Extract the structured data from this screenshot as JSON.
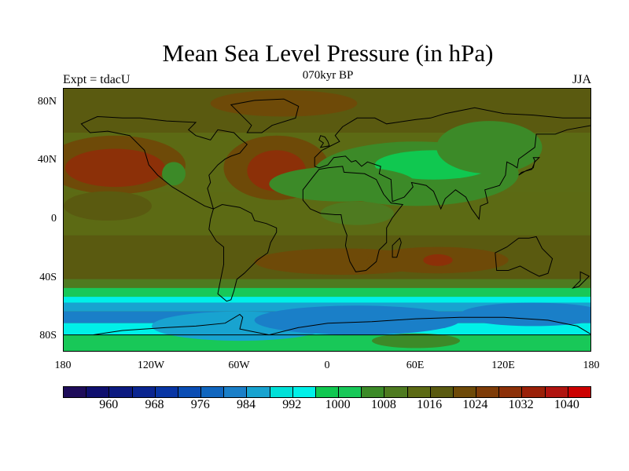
{
  "title": "Mean Sea Level Pressure (in hPa)",
  "subtitle": "070kyr BP",
  "left_label": "Expt = tdacU",
  "right_label": "JJA",
  "chart_data": {
    "type": "heatmap",
    "projection": "cylindrical-equidistant",
    "variable": "Mean Sea Level Pressure",
    "units": "hPa",
    "season": "JJA",
    "experiment": "tdacU",
    "period": "070kyr BP",
    "lon_range": [
      -180,
      180
    ],
    "lat_range": [
      -90,
      90
    ],
    "y_ticks": [
      {
        "value": 80,
        "label": "80N"
      },
      {
        "value": 40,
        "label": "40N"
      },
      {
        "value": 0,
        "label": "0"
      },
      {
        "value": -40,
        "label": "40S"
      },
      {
        "value": -80,
        "label": "80S"
      }
    ],
    "x_ticks": [
      {
        "value": -180,
        "label": "180"
      },
      {
        "value": -120,
        "label": "120W"
      },
      {
        "value": -60,
        "label": "60W"
      },
      {
        "value": 0,
        "label": "0"
      },
      {
        "value": 60,
        "label": "60E"
      },
      {
        "value": 120,
        "label": "120E"
      },
      {
        "value": 180,
        "label": "180"
      }
    ],
    "colorbar": {
      "levels_min": 956,
      "level_step": 4,
      "tick_labels": [
        "960",
        "968",
        "976",
        "984",
        "992",
        "1000",
        "1008",
        "1016",
        "1024",
        "1032",
        "1040"
      ],
      "colors": [
        "#1e0c5a",
        "#0f0f6e",
        "#0c1a80",
        "#0a2590",
        "#0835a4",
        "#0a4db4",
        "#1066bf",
        "#1a7fc8",
        "#18a3d0",
        "#00e0d8",
        "#00f0e8",
        "#10c850",
        "#18c858",
        "#3c8a28",
        "#4e7a20",
        "#5c6a14",
        "#5a5a10",
        "#6e4a08",
        "#7e3c08",
        "#8c3008",
        "#9a2008",
        "#b01410",
        "#cc0000"
      ]
    },
    "features": [
      {
        "name": "north-pacific-high",
        "lon": -145,
        "lat": 36,
        "value": 1030
      },
      {
        "name": "azores-high",
        "lon": -35,
        "lat": 35,
        "value": 1030
      },
      {
        "name": "asian-thermal-low",
        "lon": 70,
        "lat": 30,
        "value": 998
      },
      {
        "name": "south-atlantic-high",
        "lon": -15,
        "lat": -27,
        "value": 1024
      },
      {
        "name": "south-indian-high",
        "lon": 75,
        "lat": -27,
        "value": 1028
      },
      {
        "name": "southern-ocean-trough",
        "lon": 0,
        "lat": -65,
        "value": 980
      },
      {
        "name": "arctic-high",
        "lon": -30,
        "lat": 80,
        "value": 1020
      }
    ]
  }
}
